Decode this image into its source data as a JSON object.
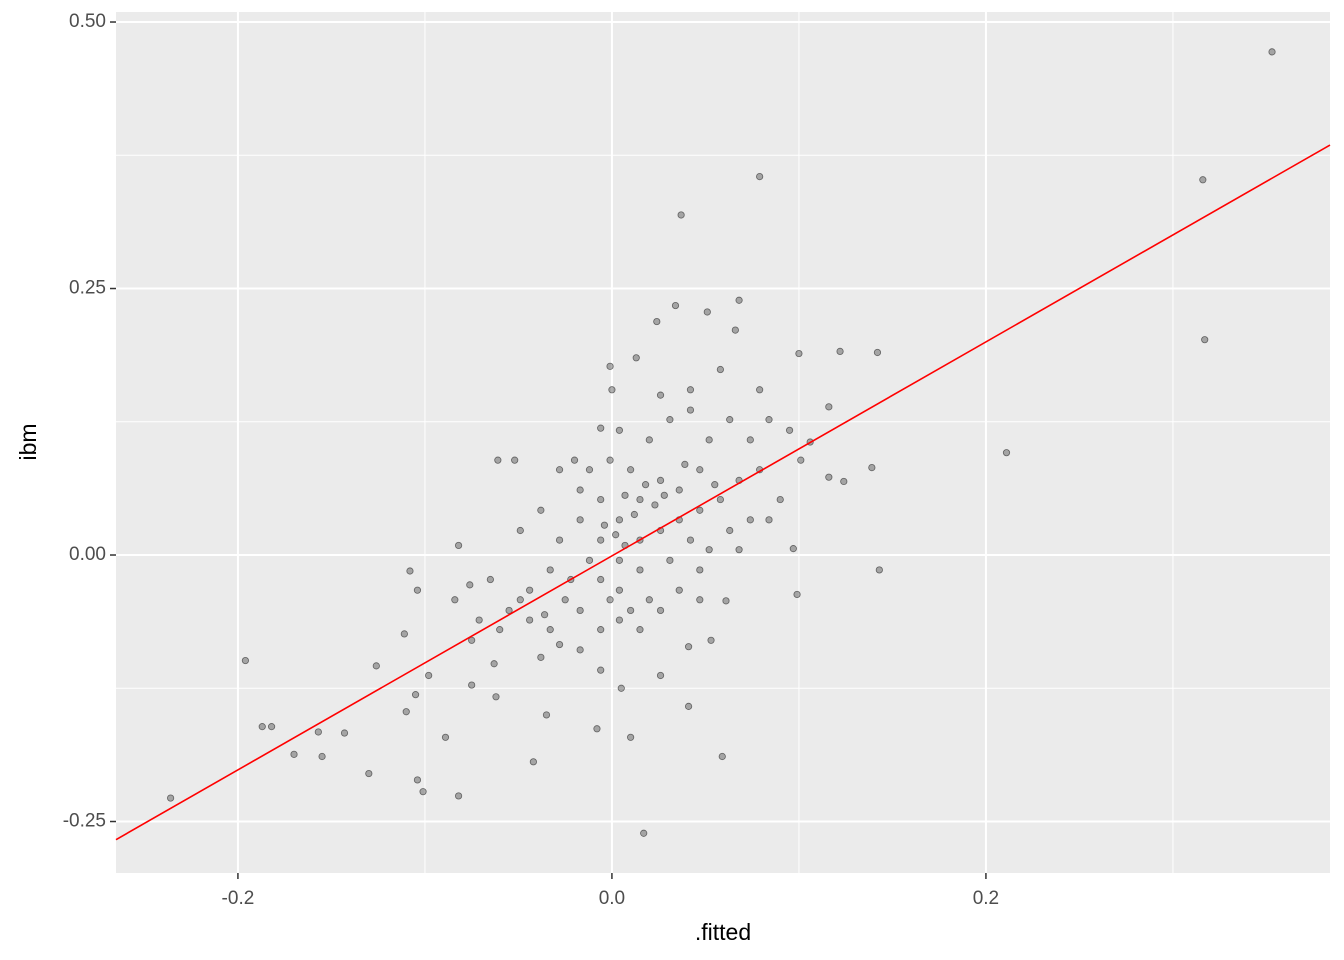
{
  "chart_data": {
    "type": "scatter",
    "x_label": ".fitted",
    "y_label": "ibm",
    "xlim": [
      -0.2652,
      0.384
    ],
    "ylim": [
      -0.2983,
      0.5094
    ],
    "xticks": [
      -0.2,
      {
        "value": 0,
        "label": "0.0"
      },
      0.2
    ],
    "yticks": [
      -0.25,
      {
        "value": 0,
        "label": "0.00"
      },
      0.25,
      {
        "value": 0.5,
        "label": "0.50"
      }
    ],
    "grid": true,
    "point_color": "#000000",
    "point_alpha": 0.3,
    "x": [
      0.353,
      0.316,
      0.317,
      0.211,
      0.079,
      0.037,
      -0.236,
      -0.196,
      -0.187,
      -0.182,
      -0.17,
      -0.157,
      -0.155,
      -0.143,
      -0.13,
      -0.126,
      -0.111,
      -0.11,
      -0.108,
      -0.104,
      -0.101,
      -0.105,
      -0.104,
      -0.098,
      -0.089,
      -0.082,
      -0.082,
      -0.042,
      -0.035,
      -0.008,
      0.01,
      0.017,
      0.041,
      0.059,
      0.143,
      0.142,
      0.122,
      0.1,
      0.139,
      0.116,
      0.124,
      0.099,
      0.097,
      0.068,
      0.034,
      0.024,
      -0.001,
      -0.061,
      -0.052,
      0.051,
      0.066,
      0.116,
      0.106,
      -0.006,
      0.0,
      0.013,
      0.061,
      0.053,
      0.041,
      0.005,
      -0.075,
      -0.063,
      -0.075,
      -0.062,
      -0.038,
      -0.006,
      0.026,
      -0.028,
      0.047,
      0.02,
      -0.017,
      -0.049,
      -0.065,
      -0.076,
      -0.006,
      0.004,
      0.015,
      0.026,
      0.036,
      0.047,
      0.058,
      0.068,
      0.079,
      0.09,
      -0.012,
      -0.022,
      -0.033,
      -0.044,
      -0.055,
      0.004,
      0.015,
      0.026,
      0.036,
      0.047,
      0.004,
      -0.006,
      -0.017,
      -0.028,
      0.01,
      0.02,
      0.031,
      0.042,
      0.052,
      0.063,
      0.074,
      0.084,
      -0.028,
      -0.017,
      -0.038,
      -0.049,
      -0.001,
      -0.012,
      0.004,
      0.015,
      0.026,
      0.036,
      -0.006,
      -0.017,
      -0.033,
      -0.044,
      -0.06,
      0.042,
      0.052,
      0.063,
      0.074,
      0.031,
      0.015,
      0.007,
      0.002,
      -0.004,
      0.012,
      0.023,
      0.028,
      0.018,
      0.007,
      0.039,
      0.055,
      -0.006,
      -0.001,
      0.01,
      -0.025,
      -0.036,
      0.101,
      0.095,
      0.079,
      0.058,
      0.042,
      0.026,
      0.004,
      -0.02,
      -0.084,
      -0.071,
      0.047,
      0.068,
      0.084
    ],
    "values": [
      0.472,
      0.352,
      0.202,
      0.096,
      0.355,
      0.319,
      -0.228,
      -0.099,
      -0.161,
      -0.161,
      -0.187,
      -0.166,
      -0.189,
      -0.167,
      -0.205,
      -0.104,
      -0.074,
      -0.147,
      -0.015,
      -0.211,
      -0.222,
      -0.131,
      -0.033,
      -0.113,
      -0.171,
      -0.226,
      0.009,
      -0.194,
      -0.15,
      -0.163,
      -0.171,
      -0.261,
      -0.142,
      -0.189,
      -0.014,
      0.19,
      0.191,
      0.189,
      0.082,
      0.073,
      0.069,
      -0.037,
      0.006,
      0.239,
      0.234,
      0.219,
      0.177,
      0.089,
      0.089,
      0.228,
      0.211,
      0.139,
      0.106,
      0.119,
      0.155,
      0.185,
      -0.043,
      -0.08,
      -0.086,
      -0.125,
      -0.08,
      -0.102,
      -0.122,
      -0.133,
      -0.096,
      -0.108,
      -0.113,
      -0.084,
      -0.014,
      -0.042,
      -0.052,
      -0.042,
      -0.023,
      -0.028,
      0.014,
      0.033,
      0.052,
      0.07,
      0.061,
      0.08,
      0.052,
      0.07,
      0.08,
      0.052,
      -0.005,
      -0.023,
      -0.014,
      -0.033,
      -0.052,
      -0.005,
      0.014,
      0.023,
      0.033,
      0.042,
      -0.033,
      0.052,
      0.033,
      0.014,
      0.08,
      0.108,
      0.127,
      0.136,
      0.108,
      0.127,
      0.108,
      0.127,
      0.08,
      0.061,
      0.042,
      0.023,
      0.089,
      0.08,
      -0.061,
      -0.07,
      -0.052,
      -0.033,
      -0.07,
      -0.089,
      -0.07,
      -0.061,
      -0.07,
      0.014,
      0.005,
      0.023,
      0.033,
      -0.005,
      -0.014,
      0.009,
      0.019,
      0.028,
      0.038,
      0.047,
      0.056,
      0.066,
      0.056,
      0.085,
      0.066,
      -0.023,
      -0.042,
      -0.052,
      -0.042,
      -0.056,
      0.089,
      0.117,
      0.155,
      0.174,
      0.155,
      0.15,
      0.117,
      0.089,
      -0.042,
      -0.061,
      -0.042,
      0.005,
      0.033
    ],
    "trend_line": {
      "x": [
        -0.2652,
        0.384
      ],
      "values": [
        -0.267,
        0.3846
      ],
      "color": "#ff0000"
    }
  }
}
